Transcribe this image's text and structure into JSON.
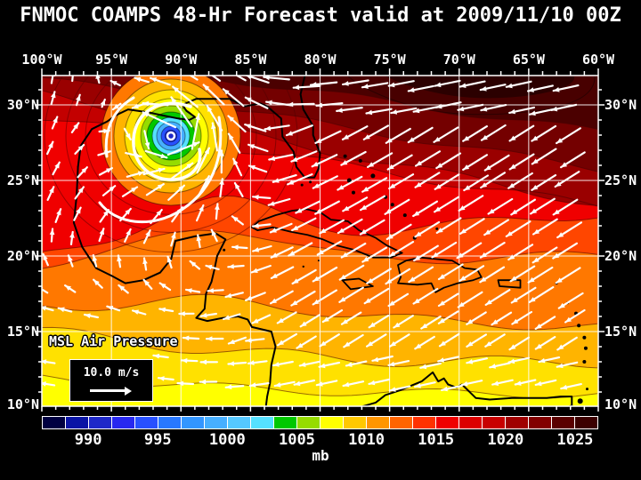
{
  "title": "FNMOC COAMPS 48-Hr Forecast valid at 2009/11/10 00Z",
  "axes": {
    "lon_labels": [
      "100°W",
      "95°W",
      "90°W",
      "85°W",
      "80°W",
      "75°W",
      "70°W",
      "65°W",
      "60°W"
    ],
    "lat_labels": [
      "30°N",
      "25°N",
      "20°N",
      "15°N",
      "10°N"
    ]
  },
  "legend": {
    "field_label": "MSL Air Pressure",
    "wind_scale_label": "10.0 m/s"
  },
  "colorbar": {
    "unit_label": "mb",
    "tick_labels": [
      "990",
      "995",
      "1000",
      "1005",
      "1010",
      "1015",
      "1020",
      "1025"
    ],
    "cell_colors": [
      "#000041",
      "#0A14A5",
      "#1E28C8",
      "#2828F0",
      "#2850FF",
      "#2878FF",
      "#3296FF",
      "#46AFFF",
      "#55C8FF",
      "#55E1FF",
      "#00C800",
      "#96DC00",
      "#FFFF00",
      "#FFC800",
      "#FF9600",
      "#FF6400",
      "#FF3200",
      "#F00000",
      "#DC0000",
      "#C80000",
      "#A00000",
      "#820000",
      "#5A0000",
      "#3C0000"
    ]
  },
  "map_colors": {
    "background": "#000000",
    "grid": "#FFFFFF",
    "coast": "#000000",
    "wind_arrows": "#FFFFFF",
    "high_pressure": "#3C0000",
    "low_pressure_core": "#1E28C8"
  }
}
